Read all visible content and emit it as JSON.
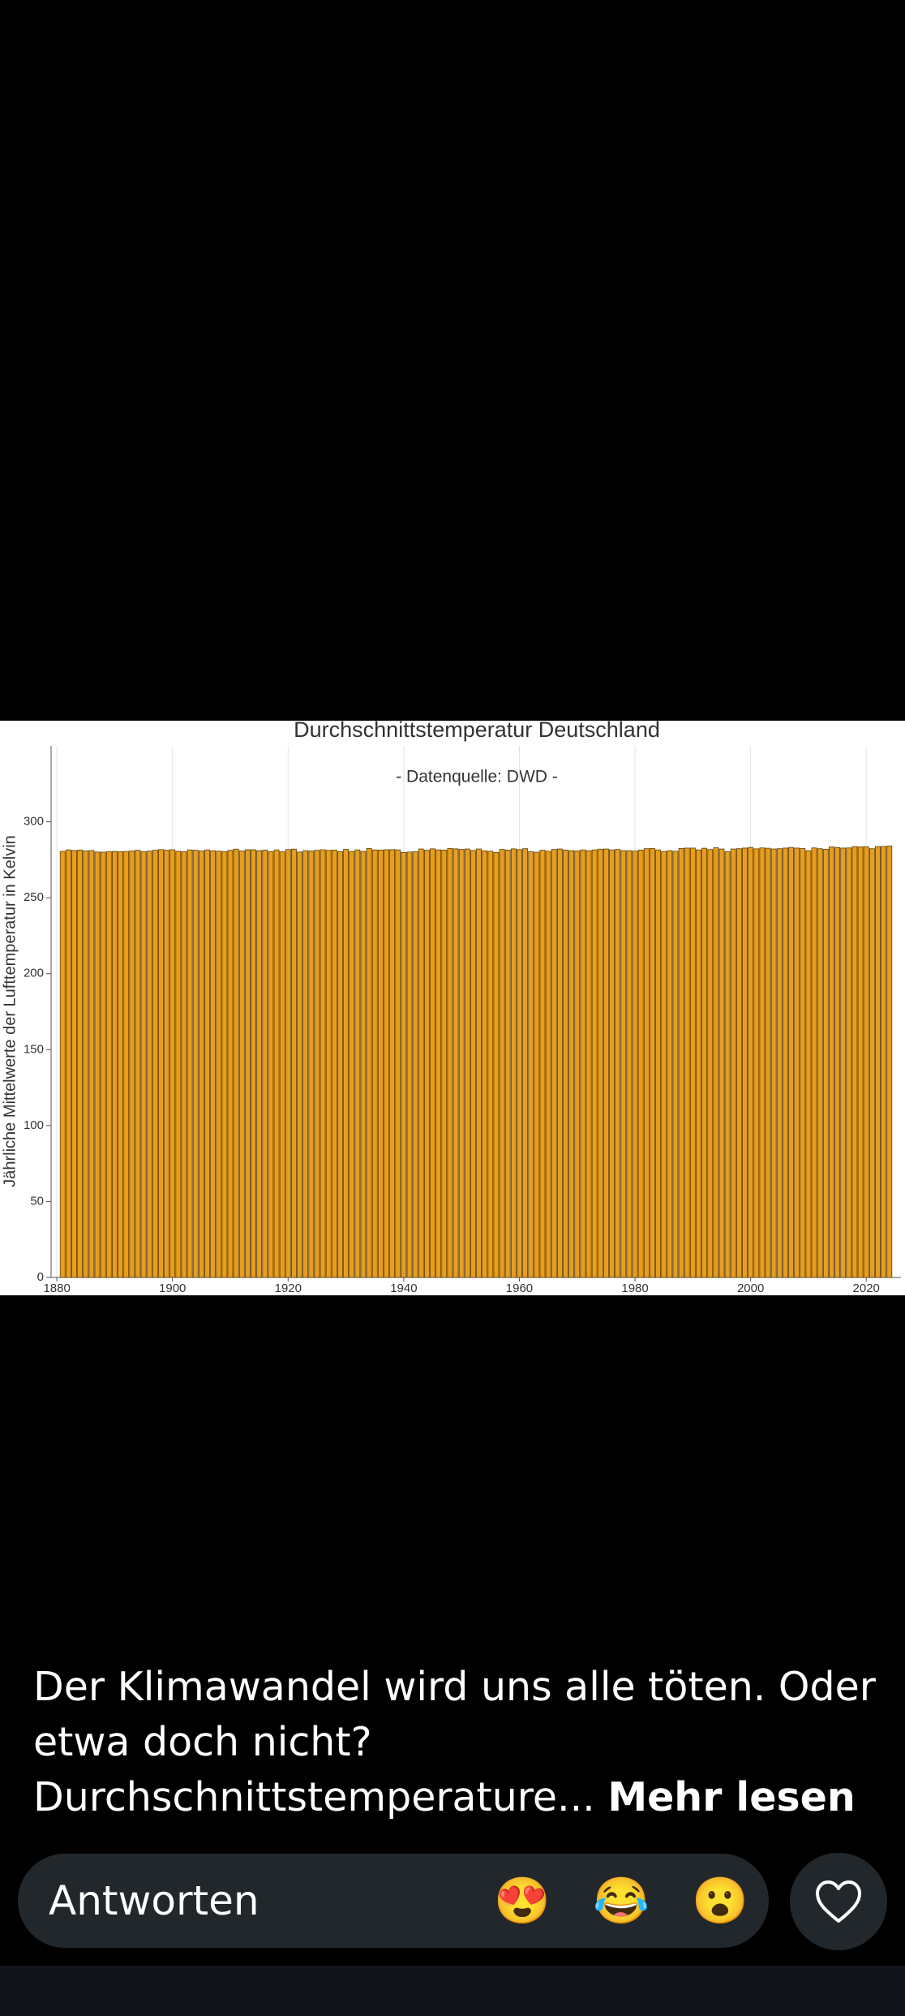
{
  "chart_data": {
    "type": "bar",
    "title": "Durchschnittstemperatur Deutschland",
    "subtitle": "- Datenquelle: DWD -",
    "y_label": "Jährliche Mittelwerte der Lufttemperatur in Kelvin",
    "color": "#e89e1c",
    "grid": true,
    "xlim": [
      1879,
      2026
    ],
    "xticks": [
      1880,
      1900,
      1920,
      1940,
      1960,
      1980,
      2000,
      2020
    ],
    "ylim": [
      0,
      350
    ],
    "yticks": [
      0,
      50,
      100,
      150,
      200,
      250,
      300
    ],
    "x": [
      1881,
      1882,
      1883,
      1884,
      1885,
      1886,
      1887,
      1888,
      1889,
      1890,
      1891,
      1892,
      1893,
      1894,
      1895,
      1896,
      1897,
      1898,
      1899,
      1900,
      1901,
      1902,
      1903,
      1904,
      1905,
      1906,
      1907,
      1908,
      1909,
      1910,
      1911,
      1912,
      1913,
      1914,
      1915,
      1916,
      1917,
      1918,
      1919,
      1920,
      1921,
      1922,
      1923,
      1924,
      1925,
      1926,
      1927,
      1928,
      1929,
      1930,
      1931,
      1932,
      1933,
      1934,
      1935,
      1936,
      1937,
      1938,
      1939,
      1940,
      1941,
      1942,
      1943,
      1944,
      1945,
      1946,
      1947,
      1948,
      1949,
      1950,
      1951,
      1952,
      1953,
      1954,
      1955,
      1956,
      1957,
      1958,
      1959,
      1960,
      1961,
      1962,
      1963,
      1964,
      1965,
      1966,
      1967,
      1968,
      1969,
      1970,
      1971,
      1972,
      1973,
      1974,
      1975,
      1976,
      1977,
      1978,
      1979,
      1980,
      1981,
      1982,
      1983,
      1984,
      1985,
      1986,
      1987,
      1988,
      1989,
      1990,
      1991,
      1992,
      1993,
      1994,
      1995,
      1996,
      1997,
      1998,
      1999,
      2000,
      2001,
      2002,
      2003,
      2004,
      2005,
      2006,
      2007,
      2008,
      2009,
      2010,
      2011,
      2012,
      2013,
      2014,
      2015,
      2016,
      2017,
      2018,
      2019,
      2020,
      2021,
      2022,
      2023,
      2024
    ],
    "values": [
      280.5,
      281.5,
      281.1,
      281.4,
      280.8,
      281.1,
      280.1,
      280.0,
      280.4,
      280.5,
      280.3,
      280.5,
      280.8,
      281.3,
      280.3,
      280.7,
      281.3,
      281.7,
      281.3,
      281.6,
      280.6,
      280.3,
      281.5,
      281.3,
      280.8,
      281.5,
      280.9,
      280.7,
      280.4,
      281.2,
      282.0,
      280.8,
      281.6,
      281.6,
      281.0,
      281.4,
      280.4,
      281.5,
      280.2,
      281.7,
      282.0,
      280.1,
      281.0,
      280.8,
      281.2,
      281.6,
      281.2,
      281.4,
      280.4,
      281.8,
      280.5,
      281.5,
      280.5,
      282.5,
      281.5,
      281.4,
      281.6,
      281.7,
      281.5,
      279.8,
      280.1,
      280.3,
      282.1,
      281.3,
      282.2,
      281.5,
      281.4,
      282.4,
      282.2,
      281.8,
      282.1,
      281.1,
      282.1,
      280.9,
      280.6,
      279.8,
      281.8,
      281.4,
      282.2,
      281.7,
      282.3,
      280.3,
      280.0,
      281.3,
      280.6,
      281.8,
      282.1,
      281.4,
      281.0,
      280.8,
      281.5,
      281.0,
      281.5,
      282.0,
      282.1,
      281.5,
      281.8,
      281.0,
      281.0,
      280.7,
      281.4,
      282.3,
      282.4,
      281.5,
      280.5,
      281.0,
      280.6,
      282.5,
      282.7,
      282.7,
      281.5,
      282.6,
      281.7,
      282.9,
      282.1,
      280.4,
      282.1,
      282.3,
      282.7,
      283.1,
      282.2,
      282.8,
      282.6,
      282.1,
      282.3,
      282.7,
      283.1,
      282.7,
      282.4,
      281.0,
      282.8,
      282.3,
      281.9,
      283.5,
      283.1,
      282.7,
      282.8,
      283.7,
      283.5,
      283.6,
      282.3,
      283.7,
      283.8,
      284.1
    ]
  },
  "caption": {
    "lines": [
      "Der Klimawandel wird uns alle töten. Oder",
      "etwa doch nicht?",
      "Durchschnittstemperature..."
    ],
    "more": "Mehr lesen"
  },
  "reply": {
    "placeholder": "Antworten",
    "reactions": [
      "😍",
      "😂",
      "😮"
    ]
  }
}
